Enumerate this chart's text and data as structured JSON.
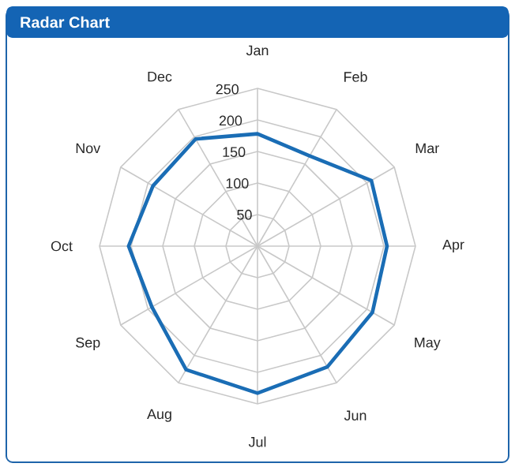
{
  "chart_data": {
    "type": "radar",
    "title": "Radar Chart",
    "categories": [
      "Jan",
      "Feb",
      "Mar",
      "Apr",
      "May",
      "Jun",
      "Jul",
      "Aug",
      "Sep",
      "Oct",
      "Nov",
      "Dec"
    ],
    "series": [
      {
        "color": "#1a6db5",
        "values": [
          178,
          165,
          208,
          205,
          210,
          221,
          233,
          226,
          193,
          204,
          191,
          196
        ]
      }
    ],
    "ylim": [
      0,
      250
    ],
    "yticks": [
      50,
      100,
      150,
      200,
      250
    ],
    "grid": true
  }
}
